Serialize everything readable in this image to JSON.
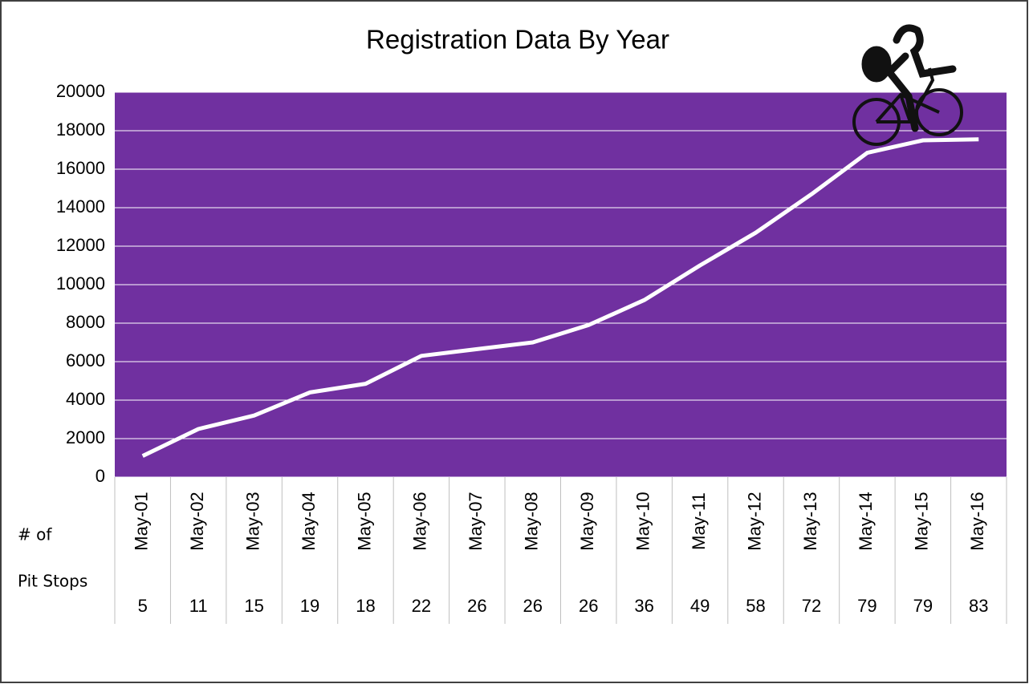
{
  "chart_data": {
    "type": "line",
    "title": "Registration Data By Year",
    "categories": [
      "May-01",
      "May-02",
      "May-03",
      "May-04",
      "May-05",
      "May-06",
      "May-07",
      "May-08",
      "May-09",
      "May-10",
      "May-11",
      "May-12",
      "May-13",
      "May-14",
      "May-15",
      "May-16"
    ],
    "values": [
      1100,
      2500,
      3200,
      4400,
      4850,
      6300,
      6650,
      7000,
      7900,
      9200,
      11000,
      12700,
      14700,
      16850,
      17500,
      17550
    ],
    "color": "#ffffff",
    "plot_background": "#7030a0",
    "ylim": [
      0,
      20000
    ],
    "yticks": [
      0,
      2000,
      4000,
      6000,
      8000,
      10000,
      12000,
      14000,
      16000,
      18000,
      20000
    ],
    "grid": true,
    "pit_stops": {
      "label_lines": [
        "# of",
        "Pit Stops"
      ],
      "values": [
        5,
        11,
        15,
        19,
        18,
        22,
        26,
        26,
        26,
        36,
        49,
        58,
        72,
        79,
        79,
        83
      ]
    }
  }
}
